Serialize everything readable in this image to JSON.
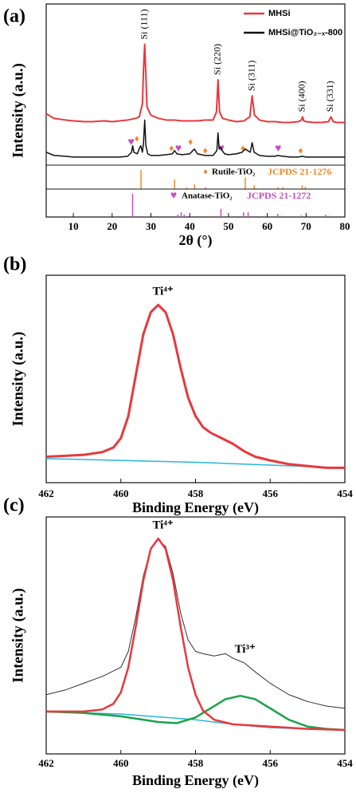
{
  "chart_data": [
    {
      "type": "line",
      "panel": "(a)",
      "xlabel": "2θ (°)",
      "ylabel": "Intensity (a.u.)",
      "xlim": [
        3,
        80
      ],
      "xticks": [
        10,
        20,
        30,
        40,
        50,
        60,
        70,
        80
      ],
      "ylim": [
        0,
        100
      ],
      "legend_loc": "upper right",
      "series": [
        {
          "name": "MHSi@TiO₂₋ₓ-800",
          "color": "#111111",
          "x": [
            3,
            5,
            8,
            10,
            13,
            15,
            18,
            20,
            22,
            24,
            25,
            25.3,
            25.6,
            26.5,
            27.1,
            27.4,
            27.8,
            28.1,
            28.4,
            28.7,
            29.2,
            30,
            32,
            34,
            35.5,
            36.1,
            36.7,
            38,
            40,
            41.2,
            42,
            44,
            46,
            47,
            47.3,
            47.6,
            48,
            48.4,
            49,
            50,
            52,
            53.5,
            54.3,
            55,
            55.6,
            56.1,
            56.6,
            58,
            60,
            62,
            62.7,
            64,
            66,
            68,
            69,
            70,
            72,
            74,
            76,
            78,
            80
          ],
          "values": [
            8,
            6,
            5.5,
            5,
            5,
            5,
            5,
            5,
            5,
            5.5,
            8,
            12,
            8,
            7,
            11,
            12,
            8,
            14,
            28,
            12,
            7,
            6,
            6,
            6.5,
            7,
            9,
            7,
            6.5,
            7,
            10,
            7,
            6,
            6,
            9,
            20,
            10,
            11,
            9,
            7,
            6.5,
            7,
            8,
            10,
            9,
            8,
            14,
            8,
            6,
            5.5,
            5.5,
            6,
            5.5,
            5,
            5,
            5.5,
            5,
            5,
            5,
            5,
            5,
            5
          ]
        },
        {
          "name": "MHSi",
          "color": "#e8383d",
          "x": [
            3,
            5,
            8,
            10,
            13,
            15,
            18,
            20,
            22,
            24,
            26,
            27,
            27.8,
            28.1,
            28.4,
            28.7,
            29,
            30,
            32,
            34,
            36,
            38,
            40,
            42,
            44,
            46,
            46.9,
            47.3,
            47.7,
            48.5,
            50,
            52,
            54,
            55.5,
            56.1,
            56.7,
            58,
            60,
            62,
            64,
            66,
            68,
            68.8,
            69.1,
            69.4,
            70,
            72,
            74,
            75.8,
            76.4,
            77,
            78,
            80
          ],
          "values": [
            32,
            29,
            28,
            27.5,
            27,
            27,
            27.5,
            27,
            27.5,
            28,
            29,
            30,
            38,
            60,
            75,
            55,
            36,
            31,
            29,
            28,
            28,
            27.5,
            27.5,
            27.5,
            28,
            28,
            33,
            53,
            33,
            29,
            28,
            27,
            27.5,
            30,
            43,
            31,
            28,
            27,
            27,
            26.5,
            26.5,
            27,
            28,
            30,
            27.5,
            27,
            26.5,
            26.5,
            27,
            30,
            27,
            26.5,
            26.5
          ]
        }
      ],
      "annotations": [
        {
          "text": "Si (111)",
          "x": 28.4
        },
        {
          "text": "Si (220)",
          "x": 47.3
        },
        {
          "text": "Si (311)",
          "x": 56.1
        },
        {
          "text": "Si (400)",
          "x": 69.1
        },
        {
          "text": "Si (331)",
          "x": 76.4
        }
      ],
      "references": [
        {
          "name": "Rutile-TiO₂",
          "card": "JCPDS 21-1276",
          "symbol": "♦",
          "color": "#f0892a",
          "ylim": [
            0,
            100
          ],
          "x": [
            27.45,
            36.09,
            39.2,
            41.24,
            44.05,
            54.32,
            56.64,
            62.74,
            64.04,
            69.0,
            69.8
          ],
          "values": [
            100,
            50,
            8,
            25,
            10,
            60,
            20,
            10,
            10,
            20,
            12
          ],
          "marker_x": [
            26.4,
            35.3,
            40.2,
            44,
            53.7,
            68.6
          ],
          "marker_values": [
            16,
            10,
            14,
            8.5,
            10,
            8.5
          ]
        },
        {
          "name": "Anatase-TiO₂",
          "card": "JCPDS 21-1272",
          "symbol": "♥",
          "color": "#c44fc0",
          "ylim": [
            0,
            100
          ],
          "x": [
            25.28,
            36.95,
            37.8,
            38.58,
            48.05,
            53.89,
            55.06,
            62.69,
            68.76,
            70.3,
            75.03,
            76.0
          ],
          "values": [
            100,
            10,
            20,
            10,
            35,
            20,
            20,
            14,
            6,
            6,
            10,
            4
          ],
          "marker_x": [
            24.9,
            37.1,
            48.1,
            62.8
          ],
          "marker_values": [
            14,
            10,
            10,
            10
          ]
        }
      ]
    },
    {
      "type": "line",
      "panel": "(b)",
      "xlabel": "Binding Energy (eV)",
      "ylabel": "Intensity (a.u.)",
      "xlim": [
        462,
        454
      ],
      "xticks": [
        462,
        460,
        458,
        456,
        454
      ],
      "ylim": [
        0,
        112
      ],
      "series": [
        {
          "color": "#29b5e0",
          "x": [
            462,
            460,
            458,
            456,
            454
          ],
          "values": [
            13,
            12,
            11,
            9.5,
            8
          ]
        },
        {
          "color": "#e8383d",
          "x": [
            462,
            461.5,
            461,
            460.5,
            460.2,
            460,
            459.8,
            459.6,
            459.4,
            459.2,
            459,
            458.8,
            458.6,
            458.4,
            458.2,
            458,
            457.8,
            457.6,
            457.4,
            457.2,
            457,
            456.7,
            456.4,
            456,
            455.5,
            455,
            454.5,
            454
          ],
          "values": [
            14,
            14.5,
            15,
            16.5,
            19,
            24,
            36,
            58,
            80,
            92,
            96,
            92,
            80,
            62,
            46,
            36,
            30,
            27,
            25,
            23,
            21,
            17,
            14,
            12,
            10,
            9,
            8,
            8
          ]
        }
      ],
      "annotations": [
        {
          "text": "Ti⁴⁺",
          "x": 459
        }
      ]
    },
    {
      "type": "line",
      "panel": "(c)",
      "xlabel": "Binding Energy (eV)",
      "ylabel": "Intensity (a.u.)",
      "xlim": [
        462,
        454
      ],
      "xticks": [
        462,
        460,
        458,
        456,
        454
      ],
      "ylim": [
        0,
        104
      ],
      "series": [
        {
          "color": "#333333",
          "x": [
            462,
            461.5,
            461,
            460.5,
            460,
            459.8,
            459.6,
            459.4,
            459.2,
            459,
            458.8,
            458.6,
            458.4,
            458.2,
            458,
            457.8,
            457.5,
            457.2,
            457,
            456.7,
            456.4,
            456,
            455.5,
            455,
            454.5,
            454
          ],
          "values": [
            26,
            28,
            31,
            34,
            38,
            45,
            60,
            78,
            90,
            94,
            91,
            79,
            62,
            50,
            45,
            44,
            43,
            44,
            42,
            40,
            36,
            31,
            26,
            23,
            21,
            20
          ]
        },
        {
          "color": "#29b5e0",
          "x": [
            462,
            460,
            458,
            457,
            456,
            455,
            454
          ],
          "values": [
            18.6,
            17.5,
            15,
            13,
            11.5,
            11,
            10.5
          ]
        },
        {
          "color": "#1aa34a",
          "x": [
            462,
            461,
            460,
            459,
            458.5,
            458,
            457.6,
            457.2,
            456.8,
            456.4,
            456,
            455.5,
            455,
            454.5,
            454
          ],
          "values": [
            18.6,
            18,
            16.5,
            14,
            13.5,
            16,
            20,
            24,
            25.5,
            24,
            20,
            15,
            12,
            11,
            10.5
          ]
        },
        {
          "color": "#e8383d",
          "x": [
            462,
            461,
            460.5,
            460.2,
            460,
            459.8,
            459.6,
            459.4,
            459.2,
            459,
            458.8,
            458.6,
            458.4,
            458.2,
            458,
            457.8,
            457.5,
            457,
            456,
            455,
            454
          ],
          "values": [
            18.6,
            18.6,
            19.5,
            22,
            27,
            38,
            56,
            76,
            90,
            94.5,
            90,
            76,
            56,
            38,
            26,
            19,
            15,
            13,
            12,
            11,
            10.5
          ]
        }
      ],
      "annotations": [
        {
          "text": "Ti⁴⁺",
          "x": 459
        },
        {
          "text": "Ti³⁺",
          "x": 456.8
        }
      ]
    }
  ]
}
